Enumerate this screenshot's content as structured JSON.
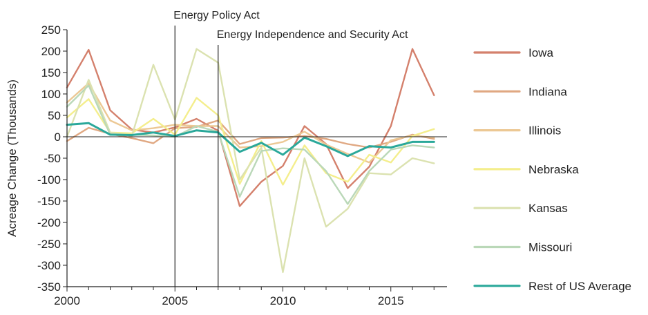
{
  "chart_data": {
    "type": "line",
    "title": "",
    "xlabel": "",
    "ylabel": "Acreage Change (Thousands)",
    "x": [
      2000,
      2001,
      2002,
      2003,
      2004,
      2005,
      2006,
      2007,
      2008,
      2009,
      2010,
      2011,
      2012,
      2013,
      2014,
      2015,
      2016,
      2017
    ],
    "xlim": [
      2000,
      2017.6
    ],
    "ylim": [
      -350,
      250
    ],
    "xticks": [
      2000,
      2005,
      2010,
      2015
    ],
    "xtick_labels": [
      "2000",
      "2005",
      "2010",
      "2015"
    ],
    "yticks": [
      250,
      200,
      150,
      100,
      50,
      0,
      -50,
      -100,
      -150,
      -200,
      -250,
      -300,
      -350
    ],
    "ytick_labels": [
      "250",
      "200",
      "150",
      "100",
      "50",
      "0",
      "-50",
      "-100",
      "-150",
      "-200",
      "-250",
      "-300",
      "-350"
    ],
    "grid": false,
    "legend_position": "right",
    "annotations": [
      {
        "label": "Energy Policy Act",
        "x": 2005
      },
      {
        "label": "Energy Independence and Security Act",
        "x": 2007
      }
    ],
    "series": [
      {
        "name": "Iowa",
        "color": "#d4806c",
        "values": [
          115,
          203,
          62,
          17,
          10,
          22,
          42,
          14,
          -162,
          -105,
          -68,
          25,
          -17,
          -120,
          -70,
          25,
          205,
          97
        ]
      },
      {
        "name": "Indiana",
        "color": "#e0a882",
        "values": [
          -10,
          21,
          7,
          -3,
          -15,
          20,
          23,
          38,
          -17,
          -3,
          -2,
          2,
          -5,
          -17,
          -25,
          -12,
          5,
          -5
        ]
      },
      {
        "name": "Illinois",
        "color": "#ecc894",
        "values": [
          80,
          125,
          38,
          15,
          20,
          28,
          25,
          25,
          -25,
          -22,
          -12,
          12,
          -18,
          -40,
          -60,
          -8,
          3,
          -2
        ]
      },
      {
        "name": "Nebraska",
        "color": "#f4ee8c",
        "values": [
          45,
          88,
          10,
          8,
          42,
          5,
          91,
          50,
          -110,
          -10,
          -112,
          -20,
          -85,
          -105,
          -42,
          -60,
          2,
          18
        ]
      },
      {
        "name": "Kansas",
        "color": "#dbe2b0",
        "values": [
          0,
          133,
          10,
          2,
          168,
          40,
          205,
          173,
          -100,
          -25,
          -316,
          -50,
          -210,
          -168,
          -85,
          -88,
          -50,
          -62
        ]
      },
      {
        "name": "Missouri",
        "color": "#bad8b8",
        "values": [
          70,
          120,
          5,
          5,
          3,
          0,
          25,
          12,
          -140,
          -33,
          -27,
          -30,
          -80,
          -157,
          -80,
          -30,
          -20,
          -25
        ]
      },
      {
        "name": "Rest of US Average",
        "color": "#2aa89a",
        "values": [
          28,
          32,
          5,
          4,
          10,
          2,
          15,
          10,
          -35,
          -14,
          -42,
          -2,
          -22,
          -45,
          -22,
          -25,
          -12,
          -12
        ]
      }
    ]
  }
}
